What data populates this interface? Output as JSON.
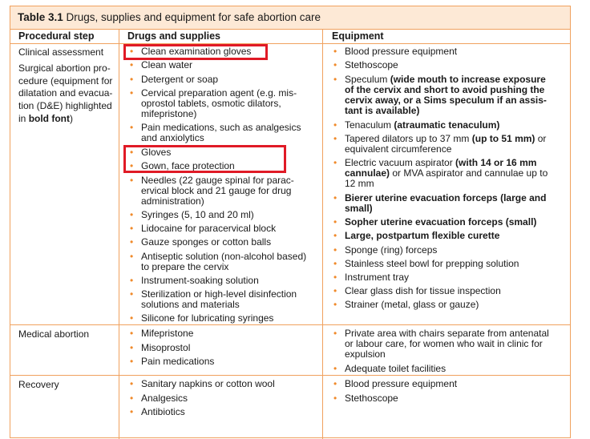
{
  "table": {
    "title_label": "Table 3.1",
    "title_text": "Drugs, supplies and equipment for safe abortion care",
    "headers": [
      "Procedural step",
      "Drugs and supplies",
      "Equipment"
    ]
  },
  "rows": {
    "clinical": {
      "step1": "Clinical assessment",
      "step2_lines": [
        "Surgical abortion pro-",
        "cedure (equipment for",
        "dilatation and evacua-",
        "tion (D&E) highlighted"
      ],
      "step2_prefix": "in ",
      "step2_bold": "bold font",
      "step2_suffix": ")",
      "drugs": [
        [
          "Clean examination gloves"
        ],
        [
          "Clean water"
        ],
        [
          "Detergent or soap"
        ],
        [
          "Cervical preparation agent (e.g. mis-",
          "oprostol tablets, osmotic dilators,",
          "mifepristone)"
        ],
        [
          "Pain medications, such as analgesics",
          "and anxiolytics"
        ],
        [
          "Gloves"
        ],
        [
          "Gown, face protection"
        ],
        [
          "Needles (22 gauge spinal for parac-",
          "ervical block and 21 gauge for drug",
          "administration)"
        ],
        [
          "Syringes (5, 10 and 20 ml)"
        ],
        [
          "Lidocaine for paracervical block"
        ],
        [
          "Gauze sponges or cotton balls"
        ],
        [
          "Antiseptic solution (non-alcohol based)",
          "to prepare the cervix"
        ],
        [
          "Instrument-soaking solution"
        ],
        [
          "Sterilization or high-level disinfection",
          "solutions and materials"
        ],
        [
          "Silicone for lubricating syringes"
        ]
      ],
      "equipment": {
        "e0": "Blood pressure equipment",
        "e1": "Stethoscope",
        "e2_a": "Speculum ",
        "e2_b": "(wide mouth to increase exposure",
        "e2_c": "of the cervix and short to avoid pushing the",
        "e2_d": "cervix away, or a Sims speculum if an assis-",
        "e2_e": "tant is available)",
        "e3_a": "Tenaculum ",
        "e3_b": "(atraumatic tenaculum)",
        "e4_a": "Tapered dilators up to 37 mm ",
        "e4_b": "(up to 51 mm)",
        "e4_c": " or",
        "e4_d": "equivalent circumference",
        "e5_a": "Electric vacuum aspirator ",
        "e5_b": "(with 14 or 16 mm",
        "e5_c": "cannulae)",
        "e5_d": " or MVA aspirator and cannulae up to",
        "e5_e": "12 mm",
        "e6_a": "Bierer uterine evacuation forceps (large and",
        "e6_b": "small)",
        "e7": "Sopher uterine evacuation forceps (small)",
        "e8": "Large, postpartum flexible curette",
        "e9": "Sponge (ring) forceps",
        "e10": "Stainless steel bowl for prepping solution",
        "e11": "Instrument tray",
        "e12": "Clear glass dish for tissue inspection",
        "e13": "Strainer (metal, glass or gauze)"
      }
    },
    "medical": {
      "step": "Medical abortion",
      "drugs": [
        [
          "Mifepristone"
        ],
        [
          "Misoprostol"
        ],
        [
          "Pain medications"
        ]
      ],
      "equipment": [
        [
          "Private area with chairs separate from antenatal",
          "or labour care, for women who wait in clinic for",
          "expulsion"
        ],
        [
          "Adequate toilet facilities"
        ]
      ]
    },
    "recovery": {
      "step": "Recovery",
      "drugs": [
        [
          "Sanitary napkins or cotton wool"
        ],
        [
          "Analgesics"
        ],
        [
          "Antibiotics"
        ]
      ],
      "equipment": [
        [
          "Blood pressure equipment"
        ],
        [
          "Stethoscope"
        ]
      ]
    }
  },
  "colors": {
    "border": "#f0a15e",
    "bullet": "#f08a2b",
    "title_bg": "#fde9d6",
    "highlight_box": "#e01a26"
  },
  "bullet_char": "•"
}
